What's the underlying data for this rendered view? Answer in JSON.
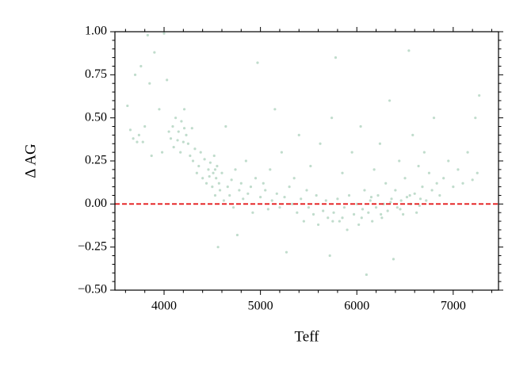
{
  "chart_data": {
    "type": "scatter",
    "xlabel": "Teff",
    "ylabel": "Δ AG",
    "color": "#2e8b57",
    "alpha": 0.3,
    "xlim": [
      3490,
      7470
    ],
    "ylim": [
      -0.5,
      1.0
    ],
    "xticks": [
      4000,
      5000,
      6000,
      7000
    ],
    "yticks": [
      {
        "value": -0.5,
        "label": "−0.50"
      },
      {
        "value": -0.25,
        "label": "−0.25"
      },
      {
        "value": 0,
        "label": "0.00"
      },
      {
        "value": 0.25,
        "label": "0.25"
      },
      {
        "value": 0.5,
        "label": "0.50"
      },
      {
        "value": 0.75,
        "label": "0.75"
      },
      {
        "value": 1.0,
        "label": "1.00"
      }
    ],
    "xminorticks": [
      3600,
      3800,
      4200,
      4400,
      4600,
      4800,
      5200,
      5400,
      5600,
      5800,
      6200,
      6400,
      6600,
      6800,
      7200,
      7400
    ],
    "yminorticks": [
      -0.45,
      -0.4,
      -0.35,
      -0.3,
      -0.2,
      -0.15,
      -0.1,
      -0.05,
      0.05,
      0.1,
      0.15,
      0.2,
      0.3,
      0.35,
      0.4,
      0.45,
      0.55,
      0.6,
      0.65,
      0.7,
      0.8,
      0.85,
      0.9,
      0.95
    ],
    "hlines": [
      {
        "value": 0,
        "color": "#e41a1c",
        "style": "dashed"
      }
    ],
    "x": [
      3620,
      3650,
      3680,
      3700,
      3720,
      3740,
      3760,
      3780,
      3800,
      3830,
      3850,
      3870,
      3900,
      3950,
      3980,
      4000,
      4030,
      4050,
      4070,
      4090,
      4100,
      4120,
      4140,
      4150,
      4170,
      4180,
      4200,
      4210,
      4230,
      4250,
      4270,
      4290,
      4300,
      4320,
      4340,
      4360,
      4380,
      4400,
      4420,
      4440,
      4460,
      4480,
      4500,
      4510,
      4520,
      4530,
      4540,
      4550,
      4560,
      4570,
      4580,
      4600,
      4620,
      4640,
      4660,
      4680,
      4700,
      4720,
      4740,
      4760,
      4780,
      4800,
      4820,
      4850,
      4870,
      4900,
      4920,
      4950,
      4970,
      5000,
      5030,
      5050,
      5080,
      5100,
      5120,
      5150,
      5170,
      5200,
      5220,
      5250,
      5270,
      5300,
      5330,
      5350,
      5380,
      5400,
      5420,
      5450,
      5480,
      5500,
      5520,
      5550,
      5580,
      5600,
      5620,
      5650,
      5680,
      5700,
      5720,
      5740,
      5760,
      5780,
      5800,
      5820,
      5850,
      5870,
      5900,
      5920,
      5950,
      5970,
      6000,
      6020,
      6040,
      6060,
      6080,
      6100,
      6120,
      6140,
      6160,
      6180,
      6200,
      6220,
      6240,
      6260,
      6280,
      6300,
      6320,
      6340,
      6360,
      6380,
      6400,
      6420,
      6440,
      6460,
      6480,
      6500,
      6520,
      6540,
      6560,
      6580,
      6600,
      6620,
      6640,
      6660,
      6680,
      6700,
      6720,
      6750,
      6780,
      6800,
      6830,
      6860,
      6900,
      6950,
      7000,
      7050,
      7100,
      7150,
      7200,
      7230,
      7250,
      7270,
      6050,
      6150,
      6250,
      6350,
      6450,
      6550,
      6650,
      5850,
      5750,
      4530,
      4470,
      4210
    ],
    "values": [
      0.57,
      0.43,
      0.38,
      0.75,
      0.36,
      0.4,
      0.8,
      0.36,
      0.45,
      0.98,
      0.7,
      0.28,
      0.88,
      0.55,
      0.3,
      0.99,
      0.72,
      0.42,
      0.38,
      0.45,
      0.33,
      0.5,
      0.37,
      0.42,
      0.3,
      0.48,
      0.36,
      0.55,
      0.4,
      0.35,
      0.28,
      0.44,
      0.25,
      0.32,
      0.18,
      0.22,
      0.3,
      0.15,
      0.26,
      0.12,
      0.2,
      0.24,
      0.1,
      0.18,
      0.28,
      0.05,
      0.15,
      0.22,
      -0.25,
      0.12,
      0.08,
      0.18,
      0.02,
      0.45,
      0.1,
      0.05,
      0.14,
      -0.02,
      0.2,
      -0.18,
      0.08,
      0.12,
      0.03,
      0.25,
      0.06,
      0.1,
      -0.05,
      0.15,
      0.82,
      0.04,
      0.12,
      0.08,
      -0.03,
      0.2,
      0.02,
      0.55,
      0.06,
      -0.02,
      0.3,
      0.04,
      -0.28,
      0.1,
      0.0,
      0.15,
      -0.05,
      0.4,
      0.03,
      -0.1,
      0.08,
      -0.02,
      0.22,
      -0.06,
      0.05,
      -0.12,
      0.35,
      -0.04,
      0.02,
      -0.08,
      -0.3,
      0.5,
      -0.05,
      0.85,
      0.03,
      -0.1,
      0.18,
      -0.02,
      -0.15,
      0.05,
      0.3,
      -0.06,
      0.0,
      -0.12,
      0.45,
      -0.03,
      0.08,
      -0.41,
      -0.05,
      0.02,
      -0.1,
      0.2,
      -0.02,
      0.05,
      0.35,
      -0.08,
      0.0,
      0.12,
      -0.04,
      0.6,
      0.03,
      -0.32,
      0.08,
      -0.02,
      0.25,
      0.02,
      -0.06,
      0.15,
      0.04,
      0.89,
      0.0,
      0.4,
      0.06,
      -0.05,
      0.22,
      0.03,
      0.1,
      0.3,
      0.02,
      0.18,
      0.08,
      0.5,
      0.12,
      0.05,
      0.15,
      0.25,
      0.1,
      0.2,
      0.12,
      0.3,
      0.14,
      0.5,
      0.18,
      0.63,
      -0.08,
      0.04,
      -0.06,
      0.01,
      -0.03,
      0.05,
      -0.01,
      -0.08,
      -0.1,
      0.2,
      0.16,
      0.44
    ]
  }
}
